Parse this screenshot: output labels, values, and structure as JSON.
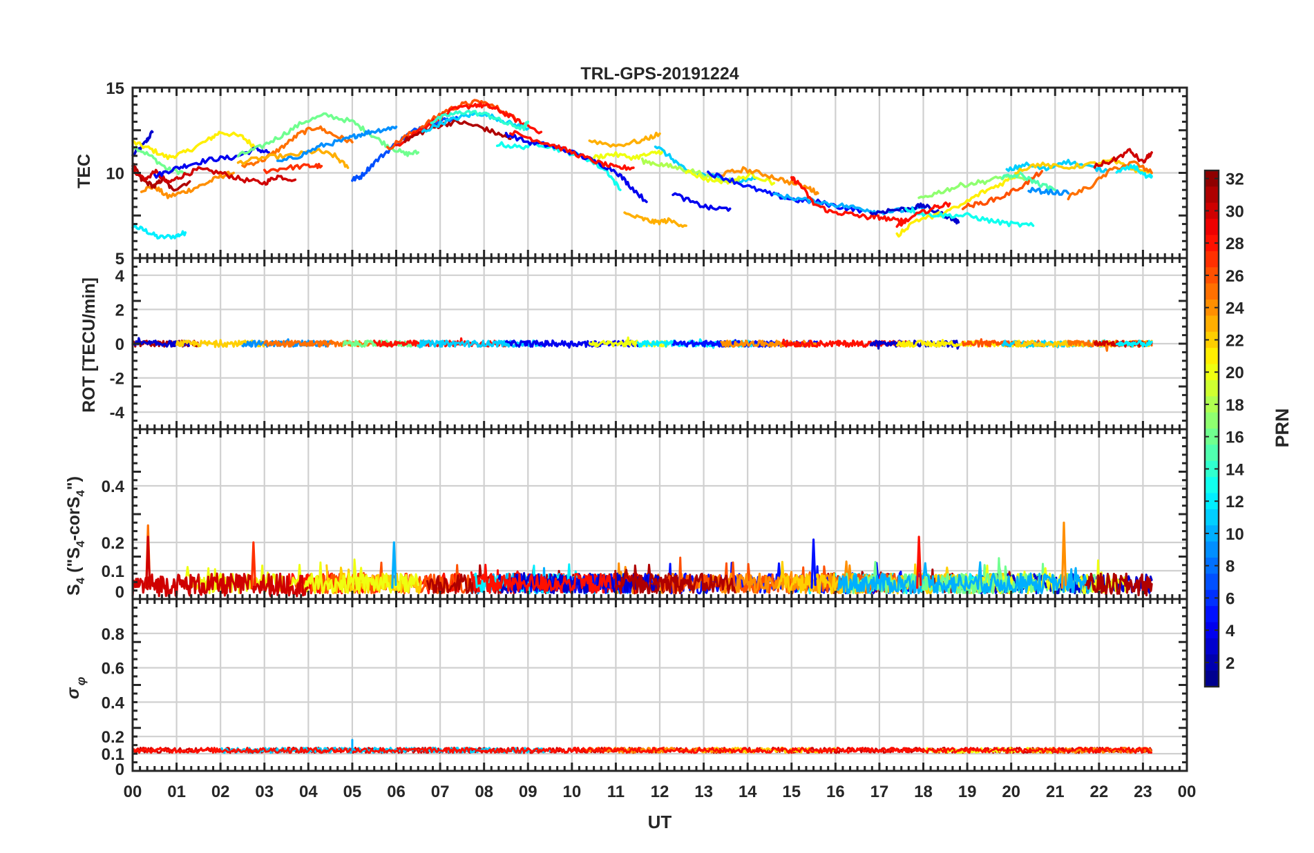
{
  "chart_data": {
    "type": "line",
    "title": "TRL-GPS-20191224",
    "xlabel": "UT",
    "xlim": [
      0,
      24
    ],
    "x_tick_labels": [
      "00",
      "01",
      "02",
      "03",
      "04",
      "05",
      "06",
      "07",
      "08",
      "09",
      "10",
      "11",
      "12",
      "13",
      "14",
      "15",
      "16",
      "17",
      "18",
      "19",
      "20",
      "21",
      "22",
      "23",
      "00"
    ],
    "colorbar": {
      "label": "PRN",
      "range": [
        1,
        32
      ],
      "tick_labels": [
        "2",
        "4",
        "6",
        "8",
        "10",
        "12",
        "14",
        "16",
        "18",
        "20",
        "22",
        "24",
        "26",
        "28",
        "30",
        "32"
      ]
    },
    "panels": [
      {
        "name": "tec",
        "ylabel": "TEC",
        "ylim": [
          5,
          15
        ],
        "y_tick_labels": [
          "15",
          "10",
          "5"
        ],
        "series": [
          {
            "prn": 3,
            "x": [
              0.0,
              0.3,
              0.45
            ],
            "y": [
              11.0,
              11.8,
              12.4
            ]
          },
          {
            "prn": 12,
            "x": [
              0.0,
              0.3,
              0.6,
              1.0,
              1.2
            ],
            "y": [
              6.9,
              6.6,
              6.2,
              6.3,
              6.5
            ]
          },
          {
            "prn": 16,
            "x": [
              0.0,
              0.4,
              0.8,
              1.2
            ],
            "y": [
              11.6,
              11.0,
              10.2,
              10.0
            ]
          },
          {
            "prn": 21,
            "x": [
              0.0,
              0.4,
              0.8,
              1.2,
              1.7,
              2.0,
              2.5,
              2.8
            ],
            "y": [
              11.8,
              11.4,
              10.9,
              11.2,
              11.9,
              12.4,
              12.1,
              11.5
            ]
          },
          {
            "prn": 24,
            "x": [
              0.2,
              0.5,
              0.8,
              1.2,
              1.6,
              2.0,
              2.3
            ],
            "y": [
              9.0,
              9.2,
              8.6,
              8.9,
              9.3,
              9.8,
              10.0
            ]
          },
          {
            "prn": 31,
            "x": [
              0.0,
              0.2,
              0.5,
              0.7,
              0.9,
              1.3
            ],
            "y": [
              10.5,
              9.6,
              9.2,
              9.7,
              9.0,
              9.5
            ]
          },
          {
            "prn": 30,
            "x": [
              0.0,
              0.3,
              0.5,
              0.8,
              1.1,
              1.5,
              2.0,
              2.5,
              3.0,
              3.3,
              3.7
            ],
            "y": [
              10.2,
              9.6,
              10.1,
              9.4,
              9.8,
              10.2,
              10.0,
              9.6,
              9.4,
              9.8,
              9.6
            ]
          },
          {
            "prn": 4,
            "x": [
              0.5,
              0.9,
              1.3,
              1.8,
              2.3,
              2.8,
              3.1
            ],
            "y": [
              9.8,
              10.2,
              10.5,
              10.8,
              10.9,
              11.4,
              11.2
            ]
          },
          {
            "prn": 16,
            "x": [
              2.4,
              2.9,
              3.4,
              3.9,
              4.4,
              5.0,
              5.4,
              5.8,
              6.2,
              6.5
            ],
            "y": [
              11.0,
              11.5,
              12.2,
              13.0,
              13.4,
              13.0,
              12.3,
              11.6,
              11.1,
              11.2
            ]
          },
          {
            "prn": 25,
            "x": [
              2.5,
              3.0,
              3.4,
              3.8,
              4.2,
              4.6,
              5.0
            ],
            "y": [
              10.4,
              10.8,
              11.5,
              12.3,
              12.7,
              12.2,
              11.8
            ]
          },
          {
            "prn": 23,
            "x": [
              2.4,
              3.0,
              3.6,
              4.2,
              4.6,
              4.9
            ],
            "y": [
              10.6,
              10.9,
              11.0,
              11.3,
              11.0,
              10.3
            ]
          },
          {
            "prn": 27,
            "x": [
              3.0,
              3.5,
              4.0,
              4.3
            ],
            "y": [
              10.1,
              10.3,
              10.4,
              10.4
            ]
          },
          {
            "prn": 9,
            "x": [
              3.3,
              3.8,
              4.3,
              4.8,
              5.1,
              5.4,
              5.8,
              6.0
            ],
            "y": [
              10.6,
              11.0,
              11.6,
              11.9,
              12.2,
              12.4,
              12.6,
              12.7
            ]
          },
          {
            "prn": 7,
            "x": [
              5.0,
              5.2,
              5.5,
              5.9,
              6.3,
              6.7,
              7.1,
              7.4
            ],
            "y": [
              9.6,
              9.8,
              10.6,
              11.5,
              12.3,
              12.9,
              13.1,
              13.2
            ]
          },
          {
            "prn": 26,
            "x": [
              5.8,
              6.2,
              6.7,
              7.1,
              7.5,
              7.9,
              8.3,
              8.7
            ],
            "y": [
              11.4,
              12.1,
              12.9,
              13.6,
              14.0,
              14.2,
              13.8,
              13.2
            ]
          },
          {
            "prn": 28,
            "x": [
              6.0,
              6.4,
              6.9,
              7.3,
              7.8,
              8.1,
              8.4,
              8.8,
              9.3
            ],
            "y": [
              11.6,
              12.3,
              13.1,
              13.7,
              14.0,
              13.9,
              13.6,
              13.0,
              12.4
            ]
          },
          {
            "prn": 31,
            "x": [
              6.2,
              6.6,
              7.0,
              7.4,
              7.9,
              8.3,
              8.6
            ],
            "y": [
              11.9,
              12.4,
              12.8,
              13.0,
              12.7,
              12.3,
              12.0
            ]
          },
          {
            "prn": 11,
            "x": [
              6.6,
              7.0,
              7.5,
              7.9,
              8.3,
              8.7,
              9.0
            ],
            "y": [
              12.4,
              12.9,
              13.3,
              13.5,
              13.2,
              12.8,
              12.6
            ]
          },
          {
            "prn": 14,
            "x": [
              6.8,
              7.2,
              7.6,
              8.1,
              8.5,
              8.9,
              9.0
            ],
            "y": [
              13.0,
              13.4,
              13.6,
              13.4,
              12.9,
              12.6,
              13.0
            ]
          },
          {
            "prn": 13,
            "x": [
              8.3,
              8.8,
              9.3,
              9.8,
              10.3,
              10.8,
              11.1
            ],
            "y": [
              11.7,
              11.5,
              11.7,
              11.3,
              10.9,
              10.1,
              9.0
            ]
          },
          {
            "prn": 4,
            "x": [
              8.5,
              9.0,
              9.5,
              10.0,
              10.5,
              11.0,
              11.3,
              11.7
            ],
            "y": [
              12.3,
              11.8,
              11.6,
              11.2,
              10.7,
              10.1,
              9.3,
              8.3
            ]
          },
          {
            "prn": 28,
            "x": [
              8.6,
              9.1,
              9.6,
              10.1,
              10.6,
              11.0,
              11.4
            ],
            "y": [
              12.4,
              12.0,
              11.6,
              11.1,
              10.6,
              10.3,
              10.3
            ]
          },
          {
            "prn": 23,
            "x": [
              10.4,
              11.0,
              11.6,
              12.0
            ],
            "y": [
              11.9,
              11.6,
              11.9,
              12.3
            ]
          },
          {
            "prn": 20,
            "x": [
              10.5,
              10.9,
              11.4,
              11.8,
              12.1
            ],
            "y": [
              10.9,
              11.1,
              10.9,
              11.1,
              11.3
            ]
          },
          {
            "prn": 23,
            "x": [
              11.2,
              11.6,
              11.9,
              12.2,
              12.6
            ],
            "y": [
              7.6,
              7.3,
              7.1,
              7.2,
              6.9
            ]
          },
          {
            "prn": 11,
            "x": [
              11.9,
              12.3,
              12.6,
              13.0,
              13.4,
              13.8,
              14.2
            ],
            "y": [
              11.6,
              10.8,
              10.1,
              9.9,
              9.7,
              9.5,
              9.7
            ]
          },
          {
            "prn": 18,
            "x": [
              11.6,
              12.0,
              12.4,
              12.9,
              13.4,
              13.8
            ],
            "y": [
              10.7,
              10.5,
              10.3,
              10.0,
              9.5,
              9.6
            ]
          },
          {
            "prn": 20,
            "x": [
              12.6,
              13.1,
              13.6,
              14.1,
              14.6
            ],
            "y": [
              10.1,
              9.6,
              9.5,
              9.9,
              9.4
            ]
          },
          {
            "prn": 4,
            "x": [
              12.3,
              12.8,
              13.2,
              13.6
            ],
            "y": [
              8.8,
              8.2,
              7.9,
              7.9
            ]
          },
          {
            "prn": 24,
            "x": [
              13.4,
              13.9,
              14.4,
              14.9,
              15.4,
              15.6
            ],
            "y": [
              9.9,
              10.2,
              9.9,
              9.5,
              9.1,
              8.8
            ]
          },
          {
            "prn": 5,
            "x": [
              13.1,
              13.6,
              14.1,
              14.6,
              15.1,
              15.6,
              16.1,
              16.6
            ],
            "y": [
              10.0,
              9.6,
              9.1,
              8.7,
              8.4,
              8.3,
              8.0,
              7.8
            ]
          },
          {
            "prn": 10,
            "x": [
              14.6,
              15.1,
              15.6,
              16.1,
              16.6,
              17.0,
              17.5,
              18.0
            ],
            "y": [
              8.7,
              8.5,
              8.3,
              8.1,
              7.9,
              7.7,
              7.8,
              7.9
            ]
          },
          {
            "prn": 28,
            "x": [
              15.0,
              15.2,
              15.5,
              15.9,
              16.3,
              16.7,
              17.0,
              17.4,
              17.6
            ],
            "y": [
              9.7,
              9.3,
              8.2,
              7.7,
              7.6,
              7.4,
              7.4,
              7.2,
              7.2
            ]
          },
          {
            "prn": 3,
            "x": [
              16.8,
              17.2,
              17.7,
              18.0,
              18.3,
              18.6,
              18.8
            ],
            "y": [
              7.6,
              7.8,
              7.9,
              8.1,
              7.7,
              7.4,
              7.1
            ]
          },
          {
            "prn": 21,
            "x": [
              17.4,
              17.8,
              18.3,
              18.8,
              19.3,
              19.8,
              20.2
            ],
            "y": [
              6.3,
              7.2,
              7.5,
              8.0,
              8.8,
              9.4,
              10.0
            ]
          },
          {
            "prn": 13,
            "x": [
              17.6,
              18.0,
              18.5,
              19.0,
              19.5,
              20.0,
              20.5
            ],
            "y": [
              7.9,
              7.6,
              7.5,
              7.5,
              7.2,
              7.0,
              6.9
            ]
          },
          {
            "prn": 17,
            "x": [
              17.9,
              18.4,
              18.9,
              19.4,
              19.9,
              20.3
            ],
            "y": [
              8.5,
              8.9,
              9.3,
              9.5,
              9.8,
              9.6
            ]
          },
          {
            "prn": 28,
            "x": [
              17.4,
              17.9,
              18.3,
              18.6
            ],
            "y": [
              6.9,
              7.6,
              8.0,
              8.2
            ]
          },
          {
            "prn": 26,
            "x": [
              18.9,
              19.3,
              19.8,
              20.3,
              20.7
            ],
            "y": [
              8.0,
              8.2,
              8.6,
              9.3,
              10.1
            ]
          },
          {
            "prn": 15,
            "x": [
              19.8,
              20.2,
              20.6,
              21.0
            ],
            "y": [
              9.7,
              9.9,
              9.4,
              9.0
            ]
          },
          {
            "prn": 11,
            "x": [
              19.9,
              20.3,
              20.8,
              21.2,
              21.7,
              22.2
            ],
            "y": [
              10.1,
              10.5,
              10.2,
              10.7,
              10.4,
              10.1
            ]
          },
          {
            "prn": 22,
            "x": [
              20.1,
              20.6,
              21.2,
              21.8,
              22.3,
              22.8,
              23.2
            ],
            "y": [
              10.1,
              10.5,
              10.3,
              10.5,
              10.7,
              10.2,
              10.0
            ]
          },
          {
            "prn": 9,
            "x": [
              20.4,
              20.8,
              21.3
            ],
            "y": [
              9.0,
              8.9,
              8.8
            ]
          },
          {
            "prn": 25,
            "x": [
              21.3,
              21.8,
              22.3,
              22.8,
              23.2
            ],
            "y": [
              8.6,
              9.2,
              10.2,
              10.6,
              10.0
            ]
          },
          {
            "prn": 30,
            "x": [
              21.9,
              22.3,
              22.7,
              23.0,
              23.2
            ],
            "y": [
              10.4,
              10.7,
              11.3,
              10.6,
              11.2
            ]
          },
          {
            "prn": 12,
            "x": [
              22.4,
              22.8,
              23.1,
              23.2
            ],
            "y": [
              10.0,
              10.4,
              9.7,
              9.8
            ]
          }
        ]
      },
      {
        "name": "rot",
        "ylabel": "ROT [TECU/min]",
        "ylim": [
          -5,
          5
        ],
        "y_tick_labels": [
          "4",
          "2",
          "0",
          "-2",
          "-4"
        ],
        "observed_range": [
          -0.4,
          0.4
        ],
        "note": "All PRNs stay within about ±0.3 TECU/min over 00-23 UT"
      },
      {
        "name": "s4",
        "ylabel": "S4 (\"S4-corS4\")",
        "ylim": [
          0,
          0.6
        ],
        "y_tick_labels": [
          "0.4",
          "0.2",
          "0.1",
          "0"
        ],
        "typical_range": [
          0.0,
          0.1
        ],
        "spikes": [
          {
            "x": 0.35,
            "y": 0.26,
            "prn": 25
          },
          {
            "x": 0.35,
            "y": 0.22,
            "prn": 30
          },
          {
            "x": 2.75,
            "y": 0.2,
            "prn": 27
          },
          {
            "x": 5.95,
            "y": 0.2,
            "prn": 10
          },
          {
            "x": 15.5,
            "y": 0.21,
            "prn": 5
          },
          {
            "x": 17.9,
            "y": 0.22,
            "prn": 28
          },
          {
            "x": 21.2,
            "y": 0.27,
            "prn": 24
          }
        ]
      },
      {
        "name": "sigma_phi",
        "ylabel": "σ φ",
        "ylim": [
          0,
          1
        ],
        "y_tick_labels": [
          "0.8",
          "0.6",
          "0.4",
          "0.2",
          "0.1",
          "0"
        ],
        "typical_value": 0.12,
        "spikes": [
          {
            "x": 5.0,
            "y": 0.18,
            "prn": 10
          }
        ]
      }
    ]
  }
}
